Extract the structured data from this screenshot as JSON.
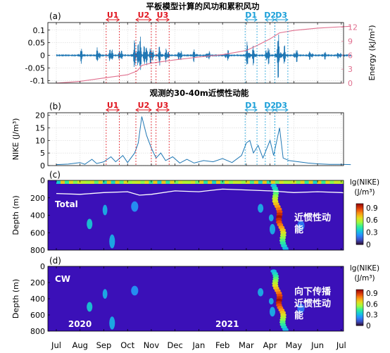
{
  "chart_data": {
    "type": "figure",
    "months": [
      "Jul",
      "Aug",
      "Sep",
      "Oct",
      "Nov",
      "Dec",
      "Jan",
      "Feb",
      "Mar",
      "Apr",
      "May",
      "Jun",
      "Jul"
    ],
    "year_labels": [
      "2020",
      "2021"
    ],
    "events": [
      {
        "name": "U1",
        "group": "U",
        "start": 2.1,
        "end": 2.65
      },
      {
        "name": "U2",
        "group": "U",
        "start": 3.35,
        "end": 4.0
      },
      {
        "name": "U3",
        "group": "U",
        "start": 4.2,
        "end": 4.75
      },
      {
        "name": "D1",
        "group": "D",
        "start": 7.95,
        "end": 8.45
      },
      {
        "name": "D2",
        "group": "D",
        "start": 8.8,
        "end": 9.2
      },
      {
        "name": "D3",
        "group": "D",
        "start": 9.2,
        "end": 9.75
      }
    ],
    "panel_a": {
      "label": "(a)",
      "title": "平板模型计算的风功和累积风功",
      "left_ticks": [
        "0.1",
        "0.05",
        "0",
        "-0.05",
        "-0.1"
      ],
      "left_tick_values": [
        0.1,
        0.05,
        0,
        -0.05,
        -0.1
      ],
      "ylim_left": [
        -0.11,
        0.13
      ],
      "right_ticks": [
        "12",
        "9",
        "6",
        "3",
        "0"
      ],
      "right_tick_values": [
        12,
        9,
        6,
        3,
        0
      ],
      "ylim_right": [
        0,
        13
      ],
      "ylabel_right": "Energy (kJ/m²)",
      "wind_work_bursts": [
        {
          "x": 1.05,
          "amp": 0.03
        },
        {
          "x": 1.75,
          "amp": 0.035
        },
        {
          "x": 2.3,
          "amp": 0.04
        },
        {
          "x": 2.7,
          "amp": 0.03
        },
        {
          "x": 3.3,
          "amp": 0.06
        },
        {
          "x": 3.5,
          "amp": 0.11
        },
        {
          "x": 3.75,
          "amp": 0.07
        },
        {
          "x": 4.0,
          "amp": 0.05
        },
        {
          "x": 4.35,
          "amp": 0.04
        },
        {
          "x": 4.65,
          "amp": 0.035
        },
        {
          "x": 5.2,
          "amp": 0.03
        },
        {
          "x": 5.8,
          "amp": 0.025
        },
        {
          "x": 6.4,
          "amp": 0.02
        },
        {
          "x": 7.2,
          "amp": 0.025
        },
        {
          "x": 8.05,
          "amp": 0.055
        },
        {
          "x": 8.3,
          "amp": 0.04
        },
        {
          "x": 8.9,
          "amp": 0.05
        },
        {
          "x": 9.35,
          "amp": 0.1
        },
        {
          "x": 9.6,
          "amp": 0.04
        },
        {
          "x": 10.1,
          "amp": 0.03
        },
        {
          "x": 10.7,
          "amp": 0.02
        },
        {
          "x": 11.3,
          "amp": 0.015
        },
        {
          "x": 11.9,
          "amp": 0.015
        }
      ],
      "energy": [
        [
          0,
          0
        ],
        [
          1,
          0.4
        ],
        [
          2,
          1.1
        ],
        [
          3,
          1.8
        ],
        [
          3.4,
          2.6
        ],
        [
          3.6,
          3.8
        ],
        [
          4,
          4.3
        ],
        [
          5,
          5.0
        ],
        [
          6,
          5.6
        ],
        [
          7,
          6.1
        ],
        [
          8,
          7.0
        ],
        [
          8.5,
          8.2
        ],
        [
          9,
          9.5
        ],
        [
          9.4,
          10.8
        ],
        [
          10,
          11.3
        ],
        [
          11,
          11.8
        ],
        [
          12,
          12.1
        ],
        [
          12.4,
          12.2
        ]
      ]
    },
    "panel_b": {
      "label": "(b)",
      "title": "观测的30-40m近惯性动能",
      "ylabel": "NIKE (J/m³)",
      "ticks": [
        "20",
        "15",
        "10",
        "5",
        "0"
      ],
      "tick_values": [
        20,
        15,
        10,
        5,
        0
      ],
      "ylim": [
        0,
        21
      ],
      "series": [
        [
          0,
          0.4
        ],
        [
          0.5,
          0.6
        ],
        [
          1,
          1.2
        ],
        [
          1.2,
          0.5
        ],
        [
          1.5,
          2.5
        ],
        [
          1.7,
          0.8
        ],
        [
          2,
          1.5
        ],
        [
          2.3,
          3.5
        ],
        [
          2.5,
          1.5
        ],
        [
          2.8,
          4
        ],
        [
          3.0,
          1.2
        ],
        [
          3.3,
          5
        ],
        [
          3.45,
          9
        ],
        [
          3.6,
          19.5
        ],
        [
          3.8,
          12
        ],
        [
          4.0,
          7
        ],
        [
          4.2,
          3
        ],
        [
          4.4,
          5
        ],
        [
          4.6,
          2
        ],
        [
          4.9,
          3.5
        ],
        [
          5.2,
          1
        ],
        [
          5.5,
          2.5
        ],
        [
          5.8,
          1
        ],
        [
          6.2,
          2
        ],
        [
          6.6,
          1.5
        ],
        [
          7,
          2.8
        ],
        [
          7.4,
          1.2
        ],
        [
          7.8,
          4
        ],
        [
          8.0,
          9
        ],
        [
          8.15,
          10
        ],
        [
          8.3,
          5
        ],
        [
          8.5,
          8
        ],
        [
          8.7,
          3
        ],
        [
          9.0,
          10
        ],
        [
          9.15,
          4
        ],
        [
          9.4,
          15
        ],
        [
          9.55,
          3
        ],
        [
          9.8,
          2
        ],
        [
          10.2,
          1.5
        ],
        [
          10.6,
          1
        ],
        [
          11,
          0.7
        ],
        [
          11.5,
          0.5
        ],
        [
          12,
          0.5
        ],
        [
          12.4,
          0.4
        ]
      ]
    },
    "panel_c": {
      "label": "(c)",
      "ylabel": "Depth (m)",
      "depth_ticks": [
        "0",
        "200",
        "400",
        "600",
        "800"
      ],
      "depth_tick_values": [
        0,
        200,
        400,
        600,
        800
      ],
      "caption_en": "Total",
      "caption_cn": [
        "近惯性动",
        "能"
      ],
      "cbar_title": [
        "lg(NIKE)",
        "(J/m³)"
      ],
      "cbar_ticks": [
        "0.9",
        "0.6",
        "0.3",
        "0"
      ],
      "cbar_tick_values": [
        0.9,
        0.6,
        0.3,
        0
      ],
      "mixed_layer_depth": [
        [
          0,
          150
        ],
        [
          1,
          160
        ],
        [
          2,
          140
        ],
        [
          3,
          130
        ],
        [
          3.5,
          170
        ],
        [
          4,
          160
        ],
        [
          5,
          120
        ],
        [
          6,
          130
        ],
        [
          7,
          100
        ],
        [
          8,
          110
        ],
        [
          9,
          120
        ],
        [
          10,
          140
        ],
        [
          11,
          130
        ],
        [
          12,
          140
        ],
        [
          12.4,
          150
        ]
      ]
    },
    "panel_d": {
      "label": "(d)",
      "ylabel": "Depth (m)",
      "depth_ticks": [
        "0",
        "200",
        "400",
        "600",
        "800"
      ],
      "depth_tick_values": [
        0,
        200,
        400,
        600,
        800
      ],
      "caption_en": "CW",
      "caption_cn": [
        "向下传播",
        "近惯性动",
        "能"
      ],
      "cbar_title": [
        "lg(NIKE)",
        "(J/m³)"
      ],
      "cbar_ticks": [
        "0.9",
        "0.6",
        "0.3",
        "0"
      ],
      "cbar_tick_values": [
        0.9,
        0.6,
        0.3,
        0
      ]
    },
    "colors": {
      "wind_work": "#1f77b4",
      "energy": "#e0708f",
      "nike": "#1f77b4",
      "event_U": "#e0141e",
      "event_D": "#1a9fd8",
      "heat_background": "#3b10b8"
    }
  }
}
